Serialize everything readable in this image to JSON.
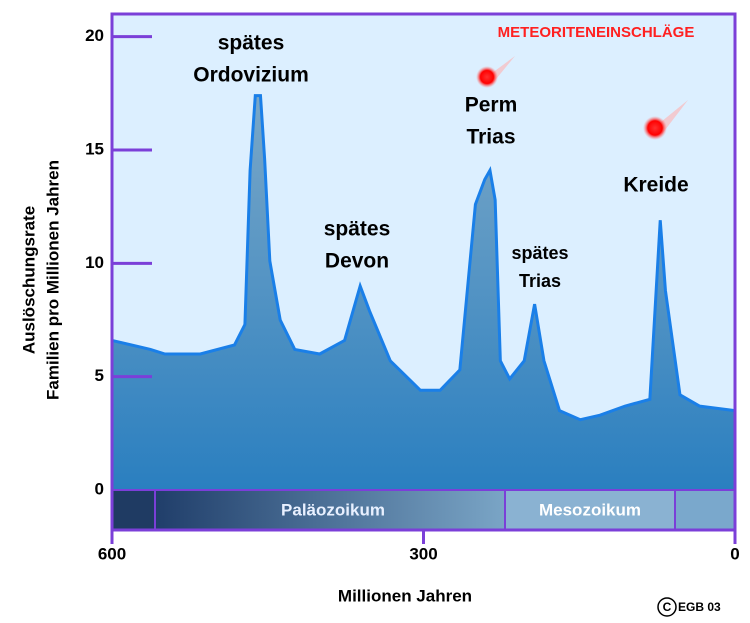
{
  "chart_data": {
    "type": "area",
    "x_label": "Millionen Jahren",
    "y_label": [
      "Auslöschungsrate",
      "Familien pro Millionen Jahren"
    ],
    "x": [
      600,
      563,
      549,
      515,
      482,
      472,
      467,
      462,
      457,
      453,
      448,
      438,
      424,
      400,
      376,
      361,
      352,
      332,
      303,
      284,
      265,
      250,
      241,
      236,
      231,
      226,
      217,
      203,
      193,
      184,
      169,
      149,
      130,
      106,
      82,
      72,
      67,
      53,
      34,
      0
    ],
    "values": [
      6.6,
      6.2,
      6.0,
      6.0,
      6.4,
      7.3,
      14.1,
      17.4,
      17.4,
      14.6,
      10.1,
      7.5,
      6.2,
      6.0,
      6.6,
      9.0,
      7.9,
      5.7,
      4.4,
      4.4,
      5.3,
      12.6,
      13.7,
      14.1,
      12.8,
      5.7,
      4.9,
      5.7,
      8.2,
      5.7,
      3.5,
      3.1,
      3.3,
      3.7,
      4.0,
      11.9,
      8.8,
      4.2,
      3.7,
      3.5
    ],
    "color": "#1a7fe8",
    "xlim": [
      600,
      0
    ],
    "xticks": [
      600,
      300,
      0
    ],
    "ylim": [
      0,
      21
    ],
    "yticks": [
      0,
      5,
      10,
      15,
      20
    ],
    "annotations": [
      "spätes",
      "Ordovizium",
      "spätes",
      "Devon",
      "Perm",
      "Trias",
      "spätes",
      "Trias",
      "Kreide",
      "METEORITENEINSCHLÄGE"
    ],
    "eras": [
      "Paläozoikum",
      "Mesozoikum"
    ],
    "credit_mark": "C",
    "credit": "EGB 03"
  }
}
